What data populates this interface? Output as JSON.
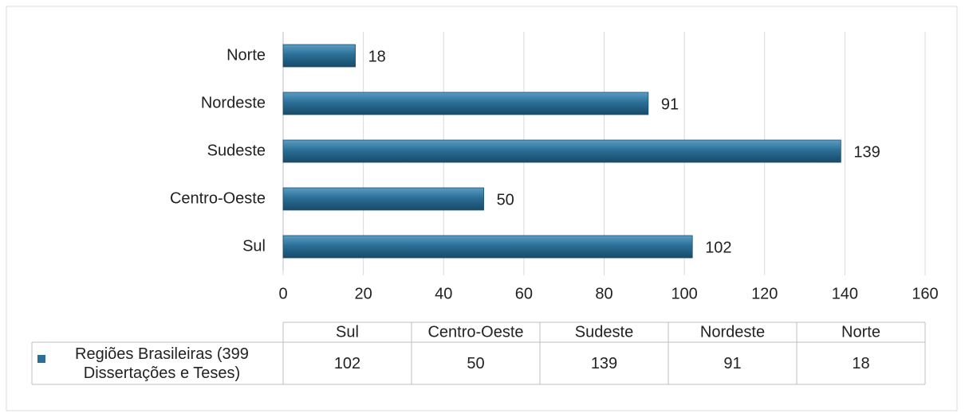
{
  "chart_data": {
    "type": "bar",
    "orientation": "horizontal",
    "categories": [
      "Sul",
      "Centro-Oeste",
      "Sudeste",
      "Nordeste",
      "Norte"
    ],
    "series": [
      {
        "name": "Regiões Brasileiras (399 Dissertações e Teses)",
        "color": "#2b6f97",
        "values": [
          102,
          50,
          139,
          91,
          18
        ]
      }
    ],
    "xlim": [
      0,
      160
    ],
    "xticks": [
      0,
      20,
      40,
      60,
      80,
      100,
      120,
      140,
      160
    ],
    "grid": true,
    "data_table": true
  }
}
